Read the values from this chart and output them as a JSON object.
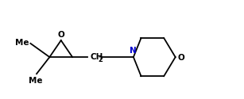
{
  "bg_color": "#ffffff",
  "line_color": "#000000",
  "text_color_black": "#000000",
  "text_color_blue": "#0000cd",
  "text_color_red": "#000000",
  "lw": 1.3,
  "figsize": [
    3.07,
    1.25
  ],
  "dpi": 100,
  "xlim": [
    0,
    32
  ],
  "ylim": [
    1,
    13
  ]
}
